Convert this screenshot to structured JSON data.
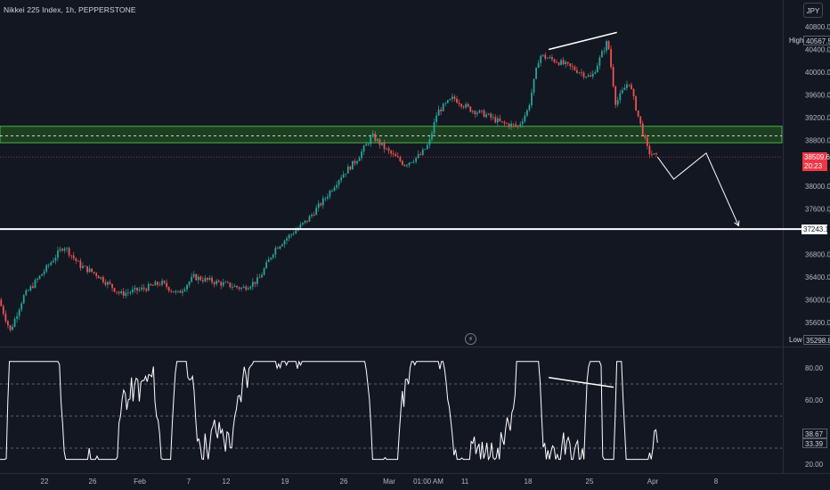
{
  "header": {
    "title": "Nikkei 225 Index, 1h, PEPPERSTONE",
    "currency": "JPY"
  },
  "colors": {
    "background": "#131722",
    "up_candle": "#26a69a",
    "down_candle": "#ef5350",
    "zone_fill": "#1e4620",
    "zone_border": "#4caf50",
    "current_price": "#f23645",
    "drawing": "#ffffff"
  },
  "price_axis": {
    "labels": [
      "40800.0",
      "40400.0",
      "40000.0",
      "39600.0",
      "39200.0",
      "38800.0",
      "38000.0",
      "37600.0",
      "36800.0",
      "36400.0",
      "36000.0",
      "35600.0"
    ]
  },
  "time_axis": {
    "labels": [
      "22",
      "26",
      "Feb",
      "7",
      "12",
      "19",
      "26",
      "Mar",
      "01:00 AM",
      "11",
      "18",
      "25",
      "Apr",
      "8"
    ]
  },
  "tags": {
    "high_label": "High",
    "high_value": "40567.5",
    "low_label": "Low",
    "low_value": "35298.8",
    "current_price": "38509.6",
    "countdown": "20:23",
    "support_level": "37243.1"
  },
  "rsi": {
    "labels": [
      "80.00",
      "60.00",
      "20.00"
    ],
    "value_1": "38.67",
    "value_2": "33.39"
  },
  "chart_data": {
    "type": "candlestick",
    "title": "Nikkei 225 Index, 1h, PEPPERSTONE",
    "ylim": [
      35200,
      41100
    ],
    "y_ticks": [
      35600,
      36000,
      36400,
      36800,
      37600,
      38000,
      38800,
      39200,
      39600,
      40000,
      40400,
      40800
    ],
    "x_ticks": [
      "22",
      "26",
      "Feb",
      "7",
      "12",
      "19",
      "26",
      "Mar",
      "01:00 AM",
      "11",
      "18",
      "25",
      "Apr",
      "8"
    ],
    "price_path": [
      {
        "t": 0,
        "p": 36000
      },
      {
        "t": 0.7,
        "p": 35450
      },
      {
        "t": 1.5,
        "p": 36050
      },
      {
        "t": 2.5,
        "p": 36400
      },
      {
        "t": 4,
        "p": 36950
      },
      {
        "t": 5,
        "p": 36600
      },
      {
        "t": 6,
        "p": 36450
      },
      {
        "t": 7.5,
        "p": 36100
      },
      {
        "t": 9,
        "p": 36200
      },
      {
        "t": 10,
        "p": 36300
      },
      {
        "t": 11,
        "p": 36100
      },
      {
        "t": 12,
        "p": 36400
      },
      {
        "t": 13.5,
        "p": 36300
      },
      {
        "t": 15,
        "p": 36200
      },
      {
        "t": 16,
        "p": 36350
      },
      {
        "t": 17,
        "p": 36900
      },
      {
        "t": 18,
        "p": 37150
      },
      {
        "t": 19,
        "p": 37400
      },
      {
        "t": 20,
        "p": 37750
      },
      {
        "t": 21,
        "p": 38150
      },
      {
        "t": 22,
        "p": 38450
      },
      {
        "t": 23,
        "p": 38880
      },
      {
        "t": 24,
        "p": 38600
      },
      {
        "t": 25,
        "p": 38380
      },
      {
        "t": 26,
        "p": 38550
      },
      {
        "t": 26.5,
        "p": 38750
      },
      {
        "t": 27,
        "p": 39300
      },
      {
        "t": 28,
        "p": 39550
      },
      {
        "t": 29,
        "p": 39350
      },
      {
        "t": 30,
        "p": 39250
      },
      {
        "t": 31,
        "p": 39100
      },
      {
        "t": 32,
        "p": 39050
      },
      {
        "t": 32.6,
        "p": 39350
      },
      {
        "t": 33.3,
        "p": 40300
      },
      {
        "t": 34.5,
        "p": 40180
      },
      {
        "t": 35.5,
        "p": 40050
      },
      {
        "t": 36.5,
        "p": 39900
      },
      {
        "t": 37.5,
        "p": 40560
      },
      {
        "t": 38,
        "p": 39450
      },
      {
        "t": 38.8,
        "p": 39850
      },
      {
        "t": 39.5,
        "p": 39100
      },
      {
        "t": 40,
        "p": 38600
      },
      {
        "t": 40.5,
        "p": 38510
      }
    ],
    "levels": {
      "high": 40567.5,
      "low": 35298.8,
      "current_price": 38509.6,
      "support": 37243.1,
      "zone_top": 39050,
      "zone_bottom": 38760,
      "zone_mid_dashed": 38880
    },
    "drawings": {
      "trendline_top": [
        [
          33.8,
          40400
        ],
        [
          38.0,
          40700
        ]
      ],
      "projection_path": [
        [
          40.5,
          38510
        ],
        [
          41.5,
          38120
        ],
        [
          43.5,
          38580
        ],
        [
          45.5,
          37300
        ]
      ]
    },
    "rsi": {
      "ylim": [
        15,
        90
      ],
      "overbought": 70,
      "oversold": 30,
      "dashed_levels": [
        70,
        50,
        30
      ],
      "last_values": [
        38.67,
        33.39
      ],
      "trendline": [
        [
          33.8,
          74
        ],
        [
          37.8,
          68
        ]
      ]
    }
  }
}
